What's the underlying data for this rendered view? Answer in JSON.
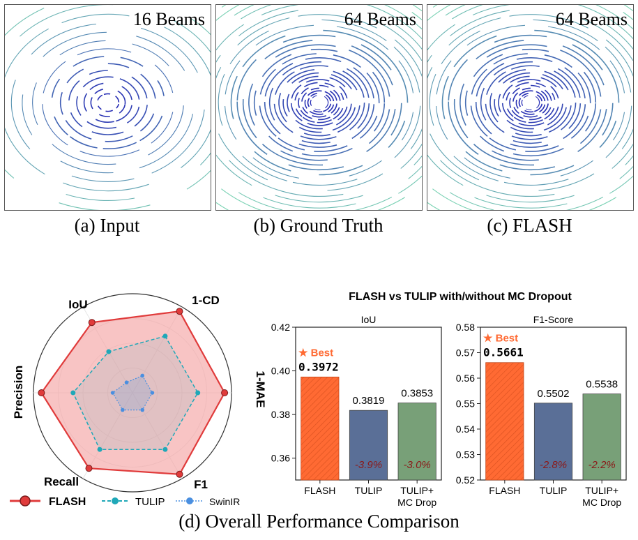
{
  "panels": [
    {
      "beams": "16 Beams",
      "caption": "(a) Input"
    },
    {
      "beams": "64 Beams",
      "caption": "(b) Ground Truth"
    },
    {
      "beams": "64 Beams",
      "caption": "(c) FLASH"
    }
  ],
  "figure_caption": "(d) Overall Performance Comparison",
  "colors": {
    "flash": "#e03b3b",
    "flash_fill": "#f4a5a5",
    "tulip": "#1fa8b8",
    "swinir": "#4a8fe0",
    "bar_flash": "#ff6a33",
    "bar_tulip": "#5a6f97",
    "bar_tulip_mc": "#78a078",
    "best": "#ff6a33",
    "delta": "#8b1a1a",
    "lidar_near": "#1f1fb4",
    "lidar_far": "#7ad3b3"
  },
  "chart_data": [
    {
      "type": "radar",
      "axes": [
        "1-CD",
        "1-MAE",
        "F1",
        "Recall",
        "Precision",
        "IoU"
      ],
      "range": [
        0,
        1
      ],
      "series": [
        {
          "name": "FLASH",
          "values": [
            0.95,
            0.93,
            0.95,
            0.88,
            0.92,
            0.82
          ]
        },
        {
          "name": "TULIP",
          "values": [
            0.66,
            0.66,
            0.66,
            0.66,
            0.6,
            0.48
          ]
        },
        {
          "name": "SwinIR",
          "values": [
            0.2,
            0.2,
            0.2,
            0.2,
            0.2,
            0.12
          ]
        }
      ],
      "legend": "bottom"
    },
    {
      "type": "bar",
      "suptitle": "FLASH vs TULIP with/without MC Dropout",
      "subplots": [
        {
          "title": "IoU",
          "categories": [
            "FLASH",
            "TULIP",
            "TULIP+\nMC Drop"
          ],
          "values": [
            0.3972,
            0.3819,
            0.3853
          ],
          "value_labels": [
            "0.3972",
            "0.3819",
            "0.3853"
          ],
          "ylim": [
            0.35,
            0.42
          ],
          "yticks": [
            "0.42",
            "0.40",
            "0.38",
            "0.36"
          ],
          "ytick_values": [
            0.42,
            0.4,
            0.38,
            0.36
          ],
          "best_label": "★ Best",
          "deltas": [
            "",
            "-3.9%",
            "-3.0%"
          ]
        },
        {
          "title": "F1-Score",
          "categories": [
            "FLASH",
            "TULIP",
            "TULIP+\nMC Drop"
          ],
          "values": [
            0.5661,
            0.5502,
            0.5538
          ],
          "value_labels": [
            "0.5661",
            "0.5502",
            "0.5538"
          ],
          "ylim": [
            0.52,
            0.58
          ],
          "yticks": [
            "0.58",
            "0.57",
            "0.56",
            "0.55",
            "0.54",
            "0.53",
            "0.52"
          ],
          "ytick_values": [
            0.58,
            0.57,
            0.56,
            0.55,
            0.54,
            0.53,
            0.52
          ],
          "best_label": "★ Best",
          "deltas": [
            "",
            "-2.8%",
            "-2.2%"
          ]
        }
      ]
    }
  ]
}
